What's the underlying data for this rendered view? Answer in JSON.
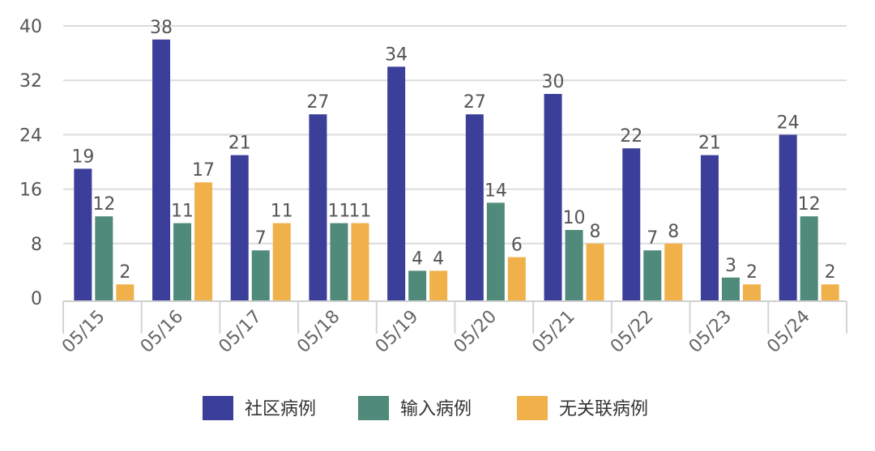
{
  "chart_data": {
    "type": "bar",
    "categories": [
      "05/15",
      "05/16",
      "05/17",
      "05/18",
      "05/19",
      "05/20",
      "05/21",
      "05/22",
      "05/23",
      "05/24"
    ],
    "series": [
      {
        "name": "社区病例",
        "color": "#3c3f99",
        "values": [
          19,
          38,
          21,
          27,
          34,
          27,
          30,
          22,
          21,
          24
        ]
      },
      {
        "name": "输入病例",
        "color": "#4f8a7a",
        "values": [
          12,
          11,
          7,
          11,
          4,
          14,
          10,
          7,
          3,
          12
        ]
      },
      {
        "name": "无关联病例",
        "color": "#f0b04a",
        "values": [
          2,
          17,
          11,
          11,
          4,
          6,
          8,
          8,
          2,
          2
        ]
      }
    ],
    "yticks": [
      "0",
      "8",
      "16",
      "24",
      "32",
      "40"
    ],
    "ylim": [
      0,
      40
    ],
    "grid": true,
    "legend": "bottom-center",
    "data_labels": true
  }
}
